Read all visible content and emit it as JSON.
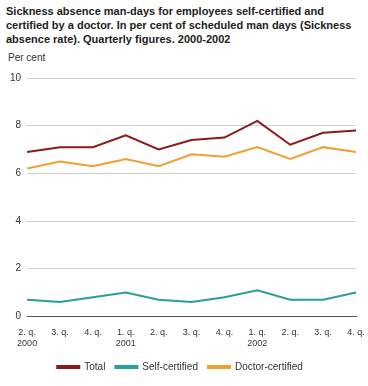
{
  "chart_data": {
    "type": "line",
    "title": "Sickness absence man-days for employees self-certified and certified by a doctor. In per cent of scheduled man days (Sickness absence rate). Quarterly figures. 2000-2002",
    "y_label": "Per cent",
    "categories": [
      "2. q.\n2000",
      "3. q.",
      "4. q.",
      "1. q.\n2001",
      "2. q.",
      "3. q.",
      "4. q.",
      "1. q.\n2002",
      "2. q.",
      "3. q.",
      "4. q."
    ],
    "series": [
      {
        "name": "Total",
        "color": "#8b1a1a",
        "values": [
          6.9,
          7.1,
          7.1,
          7.6,
          7.0,
          7.4,
          7.5,
          8.2,
          7.2,
          7.7,
          7.8
        ]
      },
      {
        "name": "Self-certified",
        "color": "#2a9d9d",
        "values": [
          0.7,
          0.6,
          0.8,
          1.0,
          0.7,
          0.6,
          0.8,
          1.1,
          0.7,
          0.7,
          1.0
        ]
      },
      {
        "name": "Doctor-certified",
        "color": "#f0a030",
        "values": [
          6.2,
          6.5,
          6.3,
          6.6,
          6.3,
          6.8,
          6.7,
          7.1,
          6.6,
          7.1,
          6.9
        ]
      }
    ],
    "ylim": [
      0,
      10
    ],
    "yticks": [
      0,
      2,
      4,
      6,
      8,
      10
    ],
    "grid": true,
    "legend": "bottom"
  }
}
